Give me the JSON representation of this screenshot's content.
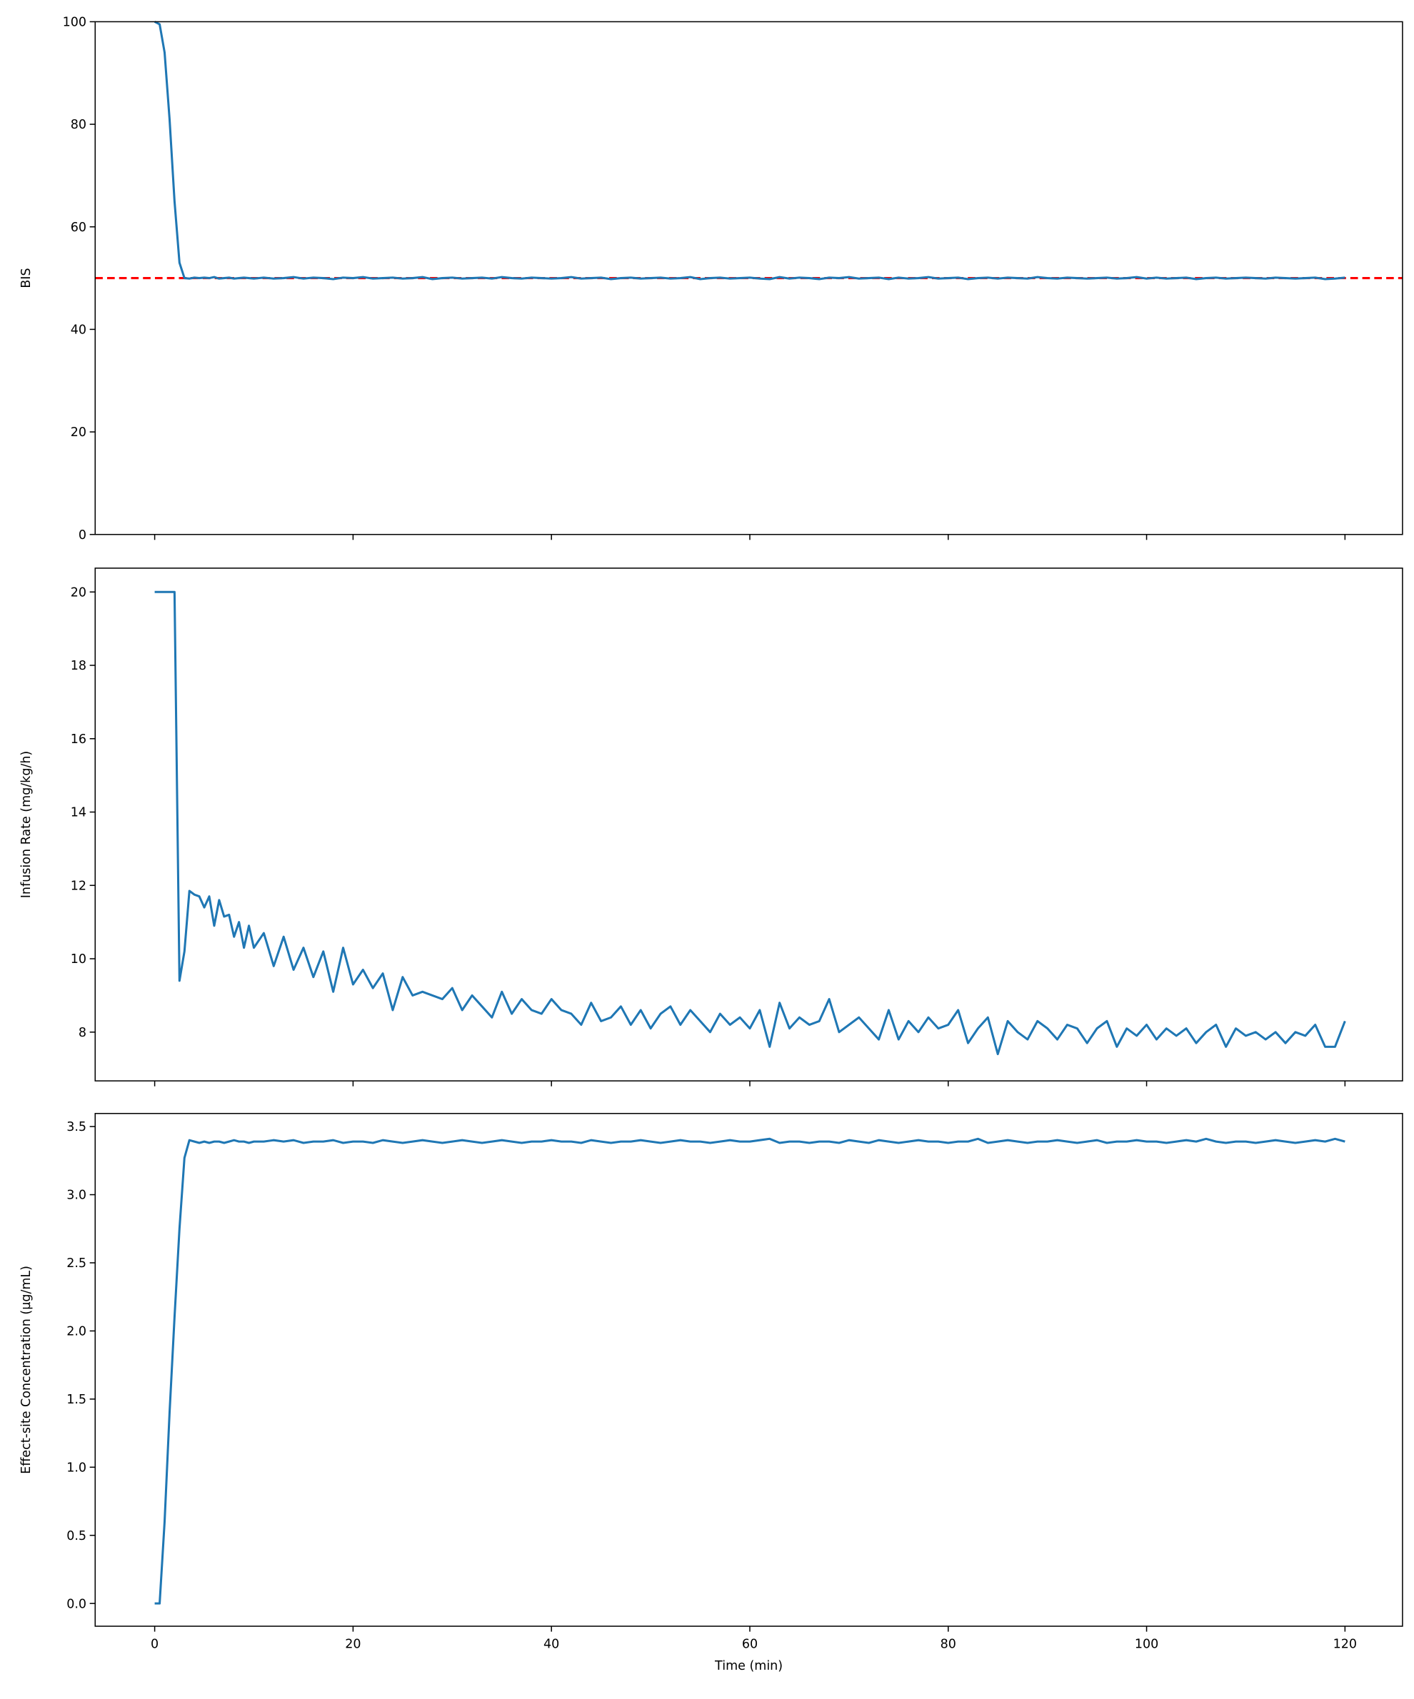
{
  "chart_data": [
    {
      "type": "line",
      "ylabel": "BIS",
      "color": "#1f77b4",
      "x": [
        0,
        0.5,
        1,
        1.5,
        2,
        2.5,
        3,
        3.5,
        4,
        4.5,
        5,
        5.5,
        6,
        6.5,
        7,
        7.5,
        8,
        8.5,
        9,
        9.5,
        10,
        11,
        12,
        13,
        14,
        15,
        16,
        17,
        18,
        19,
        20,
        21,
        22,
        23,
        24,
        25,
        26,
        27,
        28,
        29,
        30,
        31,
        32,
        33,
        34,
        35,
        36,
        37,
        38,
        39,
        40,
        41,
        42,
        43,
        44,
        45,
        46,
        47,
        48,
        49,
        50,
        51,
        52,
        53,
        54,
        55,
        56,
        57,
        58,
        59,
        60,
        61,
        62,
        63,
        64,
        65,
        66,
        67,
        68,
        69,
        70,
        71,
        72,
        73,
        74,
        75,
        76,
        77,
        78,
        79,
        80,
        81,
        82,
        83,
        84,
        85,
        86,
        87,
        88,
        89,
        90,
        91,
        92,
        93,
        94,
        95,
        96,
        97,
        98,
        99,
        100,
        101,
        102,
        103,
        104,
        105,
        106,
        107,
        108,
        109,
        110,
        111,
        112,
        113,
        114,
        115,
        116,
        117,
        118,
        119,
        120
      ],
      "values": [
        100,
        99.5,
        94,
        81,
        65,
        53,
        50,
        49.9,
        50.1,
        50.0,
        50.1,
        50.0,
        50.2,
        49.9,
        50.0,
        50.1,
        49.9,
        50.0,
        50.1,
        50.0,
        49.9,
        50.1,
        49.9,
        50.0,
        50.2,
        49.9,
        50.1,
        50.0,
        49.8,
        50.1,
        50.0,
        50.2,
        49.9,
        50.0,
        50.1,
        49.9,
        50.0,
        50.2,
        49.8,
        50.0,
        50.1,
        49.9,
        50.0,
        50.1,
        49.9,
        50.2,
        50.0,
        49.9,
        50.1,
        50.0,
        49.9,
        50.0,
        50.2,
        49.9,
        50.0,
        50.1,
        49.8,
        50.0,
        50.1,
        49.9,
        50.0,
        50.1,
        49.9,
        50.0,
        50.2,
        49.8,
        50.0,
        50.1,
        49.9,
        50.0,
        50.1,
        49.9,
        49.8,
        50.2,
        49.9,
        50.1,
        50.0,
        49.8,
        50.1,
        50.0,
        50.2,
        49.9,
        50.0,
        50.1,
        49.8,
        50.1,
        49.9,
        50.0,
        50.2,
        49.9,
        50.0,
        50.1,
        49.8,
        50.0,
        50.1,
        49.9,
        50.1,
        50.0,
        49.9,
        50.2,
        50.0,
        49.9,
        50.1,
        50.0,
        49.9,
        50.0,
        50.1,
        49.9,
        50.0,
        50.2,
        49.9,
        50.1,
        49.9,
        50.0,
        50.1,
        49.8,
        50.0,
        50.1,
        49.9,
        50.0,
        50.1,
        50.0,
        49.9,
        50.1,
        50.0,
        49.9,
        50.0,
        50.1,
        49.8,
        49.9,
        50.1
      ],
      "hline": {
        "value": 50,
        "color": "#ff0000",
        "style": "dashed"
      },
      "xlim": [
        -6,
        125.8
      ],
      "xticks": [
        0,
        20,
        40,
        60,
        80,
        100,
        120
      ],
      "xticklabels": false,
      "ylim": [
        0,
        100
      ],
      "yticks": [
        0,
        20,
        40,
        60,
        80,
        100
      ]
    },
    {
      "type": "line",
      "ylabel": "Infusion Rate (mg/kg/h)",
      "color": "#1f77b4",
      "x": [
        0,
        0.5,
        1,
        1.5,
        2,
        2.5,
        3,
        3.5,
        4,
        4.5,
        5,
        5.5,
        6,
        6.5,
        7,
        7.5,
        8,
        8.5,
        9,
        9.5,
        10,
        11,
        12,
        13,
        14,
        15,
        16,
        17,
        18,
        19,
        20,
        21,
        22,
        23,
        24,
        25,
        26,
        27,
        28,
        29,
        30,
        31,
        32,
        33,
        34,
        35,
        36,
        37,
        38,
        39,
        40,
        41,
        42,
        43,
        44,
        45,
        46,
        47,
        48,
        49,
        50,
        51,
        52,
        53,
        54,
        55,
        56,
        57,
        58,
        59,
        60,
        61,
        62,
        63,
        64,
        65,
        66,
        67,
        68,
        69,
        70,
        71,
        72,
        73,
        74,
        75,
        76,
        77,
        78,
        79,
        80,
        81,
        82,
        83,
        84,
        85,
        86,
        87,
        88,
        89,
        90,
        91,
        92,
        93,
        94,
        95,
        96,
        97,
        98,
        99,
        100,
        101,
        102,
        103,
        104,
        105,
        106,
        107,
        108,
        109,
        110,
        111,
        112,
        113,
        114,
        115,
        116,
        117,
        118,
        119,
        120
      ],
      "values": [
        20,
        20,
        20,
        20,
        20,
        9.4,
        10.2,
        11.85,
        11.75,
        11.7,
        11.4,
        11.7,
        10.9,
        11.6,
        11.15,
        11.2,
        10.6,
        11.0,
        10.3,
        10.9,
        10.3,
        10.7,
        9.8,
        10.6,
        9.7,
        10.3,
        9.5,
        10.2,
        9.1,
        10.3,
        9.3,
        9.7,
        9.2,
        9.6,
        8.6,
        9.5,
        9.0,
        9.1,
        9.0,
        8.9,
        9.2,
        8.6,
        9.0,
        8.7,
        8.4,
        9.1,
        8.5,
        8.9,
        8.6,
        8.5,
        8.9,
        8.6,
        8.5,
        8.2,
        8.8,
        8.3,
        8.4,
        8.7,
        8.2,
        8.6,
        8.1,
        8.5,
        8.7,
        8.2,
        8.6,
        8.3,
        8.0,
        8.5,
        8.2,
        8.4,
        8.1,
        8.6,
        7.6,
        8.8,
        8.1,
        8.4,
        8.2,
        8.3,
        8.9,
        8.0,
        8.2,
        8.4,
        8.1,
        7.8,
        8.6,
        7.8,
        8.3,
        8.0,
        8.4,
        8.1,
        8.2,
        8.6,
        7.7,
        8.1,
        8.4,
        7.4,
        8.3,
        8.0,
        7.8,
        8.3,
        8.1,
        7.8,
        8.2,
        8.1,
        7.7,
        8.1,
        8.3,
        7.6,
        8.1,
        7.9,
        8.2,
        7.8,
        8.1,
        7.9,
        8.1,
        7.7,
        8.0,
        8.2,
        7.6,
        8.1,
        7.9,
        8.0,
        7.8,
        8.0,
        7.7,
        8.0,
        7.9,
        8.2,
        7.6,
        7.6,
        8.3
      ],
      "xlim": [
        -6,
        125.8
      ],
      "xticks": [
        0,
        20,
        40,
        60,
        80,
        100,
        120
      ],
      "xticklabels": false,
      "ylim": [
        6.67,
        20.65
      ],
      "yticks": [
        8,
        10,
        12,
        14,
        16,
        18,
        20
      ]
    },
    {
      "type": "line",
      "ylabel": "Effect-site Concentration (µg/mL)",
      "xlabel": "Time (min)",
      "color": "#1f77b4",
      "x": [
        0,
        0.5,
        1,
        1.5,
        2,
        2.5,
        3,
        3.5,
        4,
        4.5,
        5,
        5.5,
        6,
        6.5,
        7,
        7.5,
        8,
        8.5,
        9,
        9.5,
        10,
        11,
        12,
        13,
        14,
        15,
        16,
        17,
        18,
        19,
        20,
        21,
        22,
        23,
        24,
        25,
        26,
        27,
        28,
        29,
        30,
        31,
        32,
        33,
        34,
        35,
        36,
        37,
        38,
        39,
        40,
        41,
        42,
        43,
        44,
        45,
        46,
        47,
        48,
        49,
        50,
        51,
        52,
        53,
        54,
        55,
        56,
        57,
        58,
        59,
        60,
        61,
        62,
        63,
        64,
        65,
        66,
        67,
        68,
        69,
        70,
        71,
        72,
        73,
        74,
        75,
        76,
        77,
        78,
        79,
        80,
        81,
        82,
        83,
        84,
        85,
        86,
        87,
        88,
        89,
        90,
        91,
        92,
        93,
        94,
        95,
        96,
        97,
        98,
        99,
        100,
        101,
        102,
        103,
        104,
        105,
        106,
        107,
        108,
        109,
        110,
        111,
        112,
        113,
        114,
        115,
        116,
        117,
        118,
        119,
        120
      ],
      "values": [
        0,
        0,
        0.6,
        1.4,
        2.1,
        2.75,
        3.27,
        3.4,
        3.39,
        3.38,
        3.39,
        3.38,
        3.39,
        3.39,
        3.38,
        3.39,
        3.4,
        3.39,
        3.39,
        3.38,
        3.39,
        3.39,
        3.4,
        3.39,
        3.4,
        3.38,
        3.39,
        3.39,
        3.4,
        3.38,
        3.39,
        3.39,
        3.38,
        3.4,
        3.39,
        3.38,
        3.39,
        3.4,
        3.39,
        3.38,
        3.39,
        3.4,
        3.39,
        3.38,
        3.39,
        3.4,
        3.39,
        3.38,
        3.39,
        3.39,
        3.4,
        3.39,
        3.39,
        3.38,
        3.4,
        3.39,
        3.38,
        3.39,
        3.39,
        3.4,
        3.39,
        3.38,
        3.39,
        3.4,
        3.39,
        3.39,
        3.38,
        3.39,
        3.4,
        3.39,
        3.39,
        3.4,
        3.41,
        3.38,
        3.39,
        3.39,
        3.38,
        3.39,
        3.39,
        3.38,
        3.4,
        3.39,
        3.38,
        3.4,
        3.39,
        3.38,
        3.39,
        3.4,
        3.39,
        3.39,
        3.38,
        3.39,
        3.39,
        3.41,
        3.38,
        3.39,
        3.4,
        3.39,
        3.38,
        3.39,
        3.39,
        3.4,
        3.39,
        3.38,
        3.39,
        3.4,
        3.38,
        3.39,
        3.39,
        3.4,
        3.39,
        3.39,
        3.38,
        3.39,
        3.4,
        3.39,
        3.41,
        3.39,
        3.38,
        3.39,
        3.39,
        3.38,
        3.39,
        3.4,
        3.39,
        3.38,
        3.39,
        3.4,
        3.39,
        3.41,
        3.39
      ],
      "xlim": [
        -6,
        125.8
      ],
      "xticks": [
        0,
        20,
        40,
        60,
        80,
        100,
        120
      ],
      "xticklabels": true,
      "ylim": [
        -0.167,
        3.596
      ],
      "yticks": [
        {
          "value": 0,
          "label": "0.0"
        },
        0.5,
        {
          "value": 1,
          "label": "1.0"
        },
        1.5,
        {
          "value": 2,
          "label": "2.0"
        },
        2.5,
        {
          "value": 3,
          "label": "3.0"
        },
        3.5
      ]
    }
  ]
}
